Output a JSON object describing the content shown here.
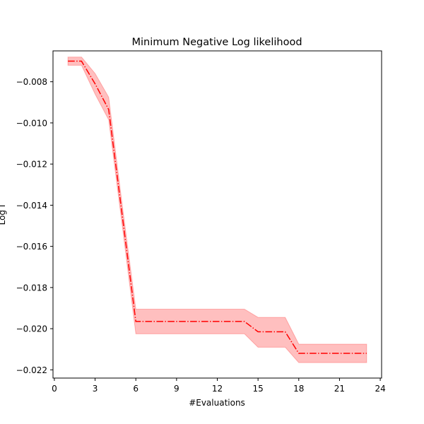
{
  "chart_data": {
    "type": "line",
    "title": "Minimum Negative Log likelihood",
    "xlabel": "#Evaluations",
    "ylabel": "Log I",
    "xlim": [
      -0.1,
      24.1
    ],
    "ylim": [
      -0.0224,
      -0.0065
    ],
    "x_ticks": [
      0,
      3,
      6,
      9,
      12,
      15,
      18,
      21,
      24
    ],
    "y_ticks": [
      -0.022,
      -0.02,
      -0.018,
      -0.016,
      -0.014,
      -0.012,
      -0.01,
      -0.008
    ],
    "y_tick_labels": [
      "−0.022",
      "−0.020",
      "−0.018",
      "−0.016",
      "−0.014",
      "−0.012",
      "−0.010",
      "−0.008"
    ],
    "grid": false,
    "series": [
      {
        "line_style": "dash-dot",
        "color": "#ff0000",
        "band_color": "#ff0000",
        "x": [
          1,
          2,
          3,
          4,
          5,
          6,
          7,
          8,
          9,
          10,
          11,
          12,
          13,
          14,
          15,
          16,
          17,
          18,
          19,
          20,
          21,
          22,
          23
        ],
        "y": [
          -0.007,
          -0.007,
          -0.0081,
          -0.00935,
          -0.0145,
          -0.01965,
          -0.01965,
          -0.01965,
          -0.01965,
          -0.01965,
          -0.01965,
          -0.01965,
          -0.01965,
          -0.01965,
          -0.02015,
          -0.02015,
          -0.02015,
          -0.0212,
          -0.0212,
          -0.0212,
          -0.0212,
          -0.0212,
          -0.0212
        ],
        "lower": [
          -0.0072,
          -0.0072,
          -0.0086,
          -0.00985,
          -0.015,
          -0.02025,
          -0.02025,
          -0.02025,
          -0.02025,
          -0.02025,
          -0.02025,
          -0.02025,
          -0.02025,
          -0.02025,
          -0.0209,
          -0.0209,
          -0.0209,
          -0.02165,
          -0.02165,
          -0.02165,
          -0.02165,
          -0.02165,
          -0.02165
        ],
        "upper": [
          -0.0068,
          -0.0068,
          -0.0076,
          -0.00875,
          -0.014,
          -0.01905,
          -0.01905,
          -0.01905,
          -0.01905,
          -0.01905,
          -0.01905,
          -0.01905,
          -0.01905,
          -0.01905,
          -0.01945,
          -0.01945,
          -0.01945,
          -0.02075,
          -0.02075,
          -0.02075,
          -0.02075,
          -0.02075,
          -0.02075
        ]
      }
    ]
  }
}
